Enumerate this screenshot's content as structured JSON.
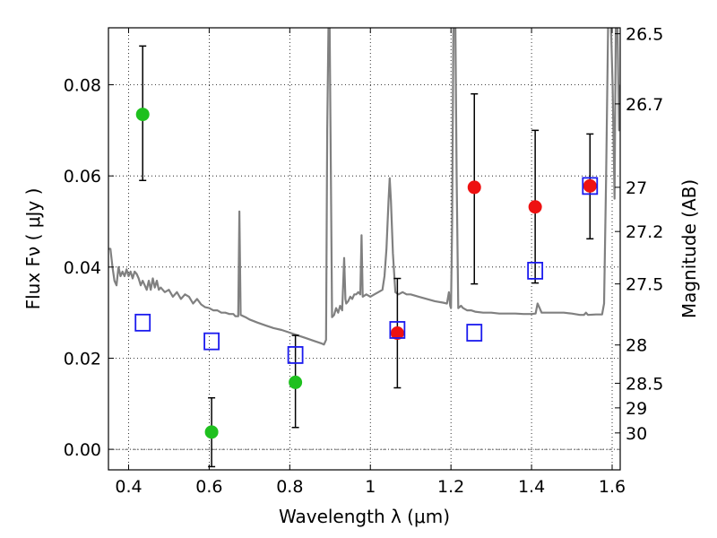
{
  "chart_data": {
    "type": "scatter",
    "xlabel": "Wavelength  λ (μm)",
    "ylabel": "Flux  Fν  ( μJy )",
    "y2label": "Magnitude (AB)",
    "xlim": [
      0.35,
      1.62
    ],
    "ylim": [
      -0.0045,
      0.0925
    ],
    "grid": true,
    "x_ticks": [
      0.4,
      0.6,
      0.8,
      1.0,
      1.2,
      1.4,
      1.6
    ],
    "x_tick_labels": [
      "0.4",
      "0.6",
      "0.8",
      "1",
      "1.2",
      "1.4",
      "1.6"
    ],
    "y_ticks": [
      0.0,
      0.02,
      0.04,
      0.06,
      0.08
    ],
    "y_tick_labels": [
      "0.00",
      "0.02",
      "0.04",
      "0.06",
      "0.08"
    ],
    "y2_ticks": [
      {
        "label": "26.5",
        "flux": 0.0912
      },
      {
        "label": "26.7",
        "flux": 0.0758
      },
      {
        "label": "27",
        "flux": 0.0575
      },
      {
        "label": "27.2",
        "flux": 0.0478
      },
      {
        "label": "27.5",
        "flux": 0.0363
      },
      {
        "label": "28",
        "flux": 0.0229
      },
      {
        "label": "28.5",
        "flux": 0.0145
      },
      {
        "label": "29",
        "flux": 0.0091
      },
      {
        "label": "30",
        "flux": 0.0036
      }
    ],
    "series": [
      {
        "marker": "circle",
        "color": "#1ec01e",
        "points": [
          {
            "x": 0.435,
            "y": 0.0735,
            "err_lo": 0.059,
            "err_hi": 0.0885
          },
          {
            "x": 0.606,
            "y": 0.0038,
            "err_lo": -0.0038,
            "err_hi": 0.0113
          },
          {
            "x": 0.814,
            "y": 0.0147,
            "err_lo": 0.0048,
            "err_hi": 0.025
          }
        ]
      },
      {
        "marker": "circle",
        "color": "#ee1111",
        "points": [
          {
            "x": 1.067,
            "y": 0.0255,
            "err_lo": 0.0135,
            "err_hi": 0.0375
          },
          {
            "x": 1.258,
            "y": 0.0575,
            "err_lo": 0.0363,
            "err_hi": 0.078
          },
          {
            "x": 1.409,
            "y": 0.0532,
            "err_lo": 0.0365,
            "err_hi": 0.07
          },
          {
            "x": 1.545,
            "y": 0.0578,
            "err_lo": 0.0462,
            "err_hi": 0.0692
          }
        ]
      },
      {
        "marker": "square",
        "color": "#1a1aee",
        "points": [
          {
            "x": 0.435,
            "y": 0.0278
          },
          {
            "x": 0.606,
            "y": 0.0237
          },
          {
            "x": 0.814,
            "y": 0.0207
          },
          {
            "x": 1.067,
            "y": 0.0262
          },
          {
            "x": 1.258,
            "y": 0.0256
          },
          {
            "x": 1.409,
            "y": 0.0392
          },
          {
            "x": 1.545,
            "y": 0.0578
          }
        ]
      }
    ],
    "model_spectrum": {
      "color": "#808080",
      "points": [
        [
          0.35,
          0.044
        ],
        [
          0.355,
          0.044
        ],
        [
          0.36,
          0.04
        ],
        [
          0.365,
          0.037
        ],
        [
          0.37,
          0.036
        ],
        [
          0.375,
          0.04
        ],
        [
          0.38,
          0.038
        ],
        [
          0.385,
          0.039
        ],
        [
          0.39,
          0.038
        ],
        [
          0.395,
          0.0395
        ],
        [
          0.4,
          0.038
        ],
        [
          0.405,
          0.039
        ],
        [
          0.41,
          0.0375
        ],
        [
          0.415,
          0.039
        ],
        [
          0.42,
          0.0385
        ],
        [
          0.425,
          0.0375
        ],
        [
          0.43,
          0.036
        ],
        [
          0.435,
          0.037
        ],
        [
          0.44,
          0.036
        ],
        [
          0.445,
          0.035
        ],
        [
          0.45,
          0.037
        ],
        [
          0.455,
          0.035
        ],
        [
          0.46,
          0.0375
        ],
        [
          0.465,
          0.0355
        ],
        [
          0.47,
          0.037
        ],
        [
          0.475,
          0.035
        ],
        [
          0.48,
          0.0355
        ],
        [
          0.49,
          0.0345
        ],
        [
          0.5,
          0.035
        ],
        [
          0.51,
          0.0335
        ],
        [
          0.52,
          0.0345
        ],
        [
          0.53,
          0.033
        ],
        [
          0.54,
          0.034
        ],
        [
          0.55,
          0.0335
        ],
        [
          0.56,
          0.032
        ],
        [
          0.57,
          0.033
        ],
        [
          0.58,
          0.0318
        ],
        [
          0.59,
          0.0312
        ],
        [
          0.6,
          0.031
        ],
        [
          0.61,
          0.0305
        ],
        [
          0.62,
          0.0305
        ],
        [
          0.63,
          0.03
        ],
        [
          0.64,
          0.03
        ],
        [
          0.65,
          0.0297
        ],
        [
          0.66,
          0.0297
        ],
        [
          0.665,
          0.0292
        ],
        [
          0.672,
          0.0292
        ],
        [
          0.675,
          0.0522
        ],
        [
          0.678,
          0.0295
        ],
        [
          0.69,
          0.029
        ],
        [
          0.7,
          0.0285
        ],
        [
          0.72,
          0.0278
        ],
        [
          0.74,
          0.0272
        ],
        [
          0.76,
          0.0266
        ],
        [
          0.78,
          0.0262
        ],
        [
          0.8,
          0.0256
        ],
        [
          0.82,
          0.025
        ],
        [
          0.84,
          0.0244
        ],
        [
          0.86,
          0.0238
        ],
        [
          0.88,
          0.0232
        ],
        [
          0.885,
          0.023
        ],
        [
          0.89,
          0.024
        ],
        [
          0.893,
          0.07
        ],
        [
          0.896,
          0.093
        ],
        [
          0.899,
          0.093
        ],
        [
          0.902,
          0.06
        ],
        [
          0.905,
          0.029
        ],
        [
          0.91,
          0.0295
        ],
        [
          0.915,
          0.031
        ],
        [
          0.92,
          0.03
        ],
        [
          0.925,
          0.0315
        ],
        [
          0.93,
          0.0305
        ],
        [
          0.935,
          0.042
        ],
        [
          0.938,
          0.033
        ],
        [
          0.94,
          0.032
        ],
        [
          0.945,
          0.0325
        ],
        [
          0.95,
          0.0335
        ],
        [
          0.955,
          0.033
        ],
        [
          0.96,
          0.034
        ],
        [
          0.965,
          0.034
        ],
        [
          0.97,
          0.0345
        ],
        [
          0.975,
          0.034
        ],
        [
          0.978,
          0.047
        ],
        [
          0.981,
          0.0335
        ],
        [
          0.99,
          0.034
        ],
        [
          1.0,
          0.0335
        ],
        [
          1.01,
          0.034
        ],
        [
          1.02,
          0.0345
        ],
        [
          1.03,
          0.035
        ],
        [
          1.035,
          0.038
        ],
        [
          1.04,
          0.044
        ],
        [
          1.045,
          0.0545
        ],
        [
          1.048,
          0.0595
        ],
        [
          1.051,
          0.0545
        ],
        [
          1.056,
          0.043
        ],
        [
          1.062,
          0.0345
        ],
        [
          1.07,
          0.034
        ],
        [
          1.08,
          0.0345
        ],
        [
          1.09,
          0.034
        ],
        [
          1.1,
          0.034
        ],
        [
          1.12,
          0.0335
        ],
        [
          1.14,
          0.033
        ],
        [
          1.16,
          0.0325
        ],
        [
          1.18,
          0.0322
        ],
        [
          1.19,
          0.032
        ],
        [
          1.195,
          0.0345
        ],
        [
          1.198,
          0.0315
        ],
        [
          1.2,
          0.031
        ],
        [
          1.203,
          0.05
        ],
        [
          1.206,
          0.093
        ],
        [
          1.211,
          0.093
        ],
        [
          1.214,
          0.06
        ],
        [
          1.218,
          0.031
        ],
        [
          1.225,
          0.0315
        ],
        [
          1.23,
          0.031
        ],
        [
          1.24,
          0.0305
        ],
        [
          1.25,
          0.0305
        ],
        [
          1.26,
          0.0302
        ],
        [
          1.28,
          0.03
        ],
        [
          1.3,
          0.03
        ],
        [
          1.32,
          0.0298
        ],
        [
          1.34,
          0.0298
        ],
        [
          1.36,
          0.0298
        ],
        [
          1.38,
          0.0297
        ],
        [
          1.4,
          0.0297
        ],
        [
          1.41,
          0.0298
        ],
        [
          1.415,
          0.032
        ],
        [
          1.42,
          0.031
        ],
        [
          1.425,
          0.03
        ],
        [
          1.44,
          0.03
        ],
        [
          1.46,
          0.03
        ],
        [
          1.48,
          0.03
        ],
        [
          1.5,
          0.0298
        ],
        [
          1.52,
          0.0295
        ],
        [
          1.53,
          0.0295
        ],
        [
          1.535,
          0.03
        ],
        [
          1.54,
          0.0295
        ],
        [
          1.56,
          0.0296
        ],
        [
          1.575,
          0.0296
        ],
        [
          1.58,
          0.032
        ],
        [
          1.585,
          0.06
        ],
        [
          1.59,
          0.093
        ],
        [
          1.597,
          0.093
        ],
        [
          1.601,
          0.08
        ],
        [
          1.603,
          0.07
        ],
        [
          1.606,
          0.055
        ],
        [
          1.609,
          0.093
        ],
        [
          1.613,
          0.093
        ],
        [
          1.617,
          0.07
        ],
        [
          1.62,
          0.08
        ]
      ]
    }
  }
}
